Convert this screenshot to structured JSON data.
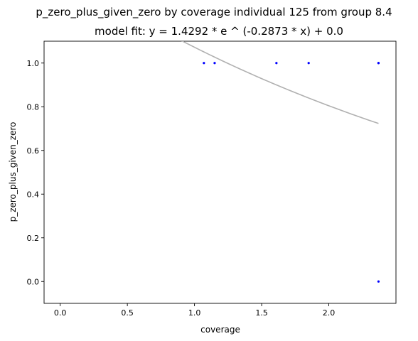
{
  "chart_data": {
    "type": "scatter",
    "title": "p_zero_plus_given_zero by coverage individual 125 from group 8.4",
    "subtitle": "model fit: y = 1.4292 * e ^ (-0.2873 * x) + 0.0",
    "xlabel": "coverage",
    "ylabel": "p_zero_plus_given_zero",
    "xlim": [
      -0.12,
      2.5
    ],
    "ylim": [
      -0.1,
      1.1
    ],
    "x_ticks": [
      0.0,
      0.5,
      1.0,
      1.5,
      2.0
    ],
    "x_tick_labels": [
      "0.0",
      "0.5",
      "1.0",
      "1.5",
      "2.0"
    ],
    "y_ticks": [
      0.0,
      0.2,
      0.4,
      0.6,
      0.8,
      1.0
    ],
    "y_tick_labels": [
      "0.0",
      "0.2",
      "0.4",
      "0.6",
      "0.8",
      "1.0"
    ],
    "grid": false,
    "points": [
      {
        "x": 1.07,
        "y": 1.0
      },
      {
        "x": 1.15,
        "y": 1.0
      },
      {
        "x": 1.61,
        "y": 1.0
      },
      {
        "x": 1.85,
        "y": 1.0
      },
      {
        "x": 2.37,
        "y": 1.0
      },
      {
        "x": 2.37,
        "y": 1.0
      },
      {
        "x": 2.37,
        "y": 0.0
      }
    ],
    "fit": {
      "a": 1.4292,
      "b": -0.2873,
      "c": 0.0,
      "x_range": [
        0.0,
        2.37
      ]
    },
    "colors": {
      "points": "#0000ff",
      "fit_line": "#b0b0b0",
      "axes": "#000000"
    }
  }
}
